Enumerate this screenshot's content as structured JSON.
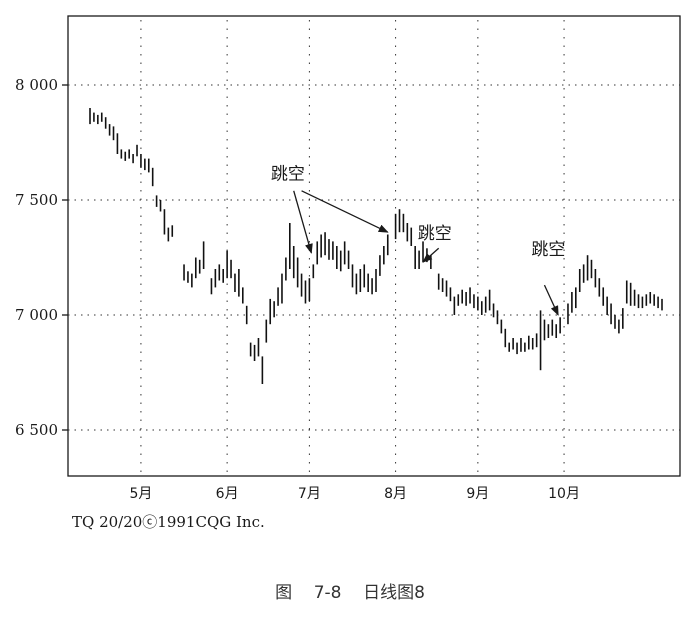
{
  "caption": "图    7-8    日线图8",
  "credit": "TQ 20/20ⓒ1991CQG Inc.",
  "chart_data": {
    "type": "bar",
    "subtype": "ohlc-daily",
    "ylim": [
      6300,
      8300
    ],
    "yticks": [
      {
        "value": 6500,
        "label": "6 500"
      },
      {
        "value": 7000,
        "label": "7 000"
      },
      {
        "value": 7500,
        "label": "7 500"
      },
      {
        "value": 8000,
        "label": "8 000"
      }
    ],
    "grid": "dotted-horizontal",
    "x_ticks": [
      {
        "label": "5月",
        "day": 13
      },
      {
        "label": "6月",
        "day": 35
      },
      {
        "label": "7月",
        "day": 56
      },
      {
        "label": "8月",
        "day": 78
      },
      {
        "label": "9月",
        "day": 99
      },
      {
        "label": "10月",
        "day": 121
      }
    ],
    "x_range": [
      -5,
      137
    ],
    "bars": [
      [
        0,
        7900,
        7830
      ],
      [
        1,
        7880,
        7840
      ],
      [
        2,
        7870,
        7830
      ],
      [
        3,
        7880,
        7840
      ],
      [
        4,
        7860,
        7810
      ],
      [
        5,
        7830,
        7780
      ],
      [
        6,
        7820,
        7760
      ],
      [
        7,
        7790,
        7700
      ],
      [
        8,
        7720,
        7680
      ],
      [
        9,
        7710,
        7670
      ],
      [
        10,
        7720,
        7680
      ],
      [
        11,
        7700,
        7660
      ],
      [
        12,
        7740,
        7690
      ],
      [
        13,
        7700,
        7640
      ],
      [
        14,
        7680,
        7630
      ],
      [
        15,
        7680,
        7620
      ],
      [
        16,
        7640,
        7560
      ],
      [
        17,
        7520,
        7470
      ],
      [
        18,
        7500,
        7450
      ],
      [
        19,
        7460,
        7350
      ],
      [
        20,
        7380,
        7320
      ],
      [
        21,
        7390,
        7340
      ],
      [
        24,
        7220,
        7150
      ],
      [
        25,
        7190,
        7140
      ],
      [
        26,
        7180,
        7120
      ],
      [
        27,
        7250,
        7160
      ],
      [
        28,
        7240,
        7180
      ],
      [
        29,
        7320,
        7200
      ],
      [
        31,
        7160,
        7090
      ],
      [
        32,
        7200,
        7120
      ],
      [
        33,
        7220,
        7150
      ],
      [
        34,
        7200,
        7140
      ],
      [
        35,
        7280,
        7160
      ],
      [
        36,
        7240,
        7160
      ],
      [
        37,
        7180,
        7100
      ],
      [
        38,
        7200,
        7080
      ],
      [
        39,
        7120,
        7050
      ],
      [
        40,
        7040,
        6960
      ],
      [
        41,
        6880,
        6820
      ],
      [
        42,
        6870,
        6800
      ],
      [
        43,
        6900,
        6820
      ],
      [
        44,
        6820,
        6700
      ],
      [
        45,
        6980,
        6880
      ],
      [
        46,
        7070,
        6960
      ],
      [
        47,
        7060,
        6990
      ],
      [
        48,
        7120,
        7040
      ],
      [
        49,
        7180,
        7050
      ],
      [
        50,
        7250,
        7150
      ],
      [
        51,
        7400,
        7200
      ],
      [
        52,
        7300,
        7160
      ],
      [
        53,
        7250,
        7120
      ],
      [
        54,
        7180,
        7080
      ],
      [
        55,
        7150,
        7050
      ],
      [
        56,
        7160,
        7060
      ],
      [
        57,
        7220,
        7160
      ],
      [
        58,
        7320,
        7220
      ],
      [
        59,
        7350,
        7250
      ],
      [
        60,
        7360,
        7260
      ],
      [
        61,
        7330,
        7240
      ],
      [
        62,
        7320,
        7240
      ],
      [
        63,
        7300,
        7200
      ],
      [
        64,
        7280,
        7190
      ],
      [
        65,
        7320,
        7220
      ],
      [
        66,
        7280,
        7200
      ],
      [
        67,
        7220,
        7120
      ],
      [
        68,
        7180,
        7090
      ],
      [
        69,
        7200,
        7100
      ],
      [
        70,
        7220,
        7120
      ],
      [
        71,
        7180,
        7100
      ],
      [
        72,
        7160,
        7090
      ],
      [
        73,
        7200,
        7100
      ],
      [
        74,
        7260,
        7170
      ],
      [
        75,
        7300,
        7220
      ],
      [
        76,
        7350,
        7260
      ],
      [
        78,
        7440,
        7330
      ],
      [
        79,
        7460,
        7360
      ],
      [
        80,
        7440,
        7360
      ],
      [
        81,
        7400,
        7320
      ],
      [
        82,
        7380,
        7300
      ],
      [
        83,
        7300,
        7200
      ],
      [
        84,
        7280,
        7200
      ],
      [
        85,
        7320,
        7230
      ],
      [
        86,
        7290,
        7230
      ],
      [
        87,
        7260,
        7200
      ],
      [
        89,
        7180,
        7110
      ],
      [
        90,
        7160,
        7100
      ],
      [
        91,
        7150,
        7080
      ],
      [
        92,
        7120,
        7060
      ],
      [
        93,
        7080,
        7000
      ],
      [
        94,
        7090,
        7040
      ],
      [
        95,
        7110,
        7050
      ],
      [
        96,
        7100,
        7040
      ],
      [
        97,
        7120,
        7050
      ],
      [
        98,
        7090,
        7030
      ],
      [
        99,
        7080,
        7020
      ],
      [
        100,
        7060,
        7000
      ],
      [
        101,
        7080,
        7010
      ],
      [
        102,
        7110,
        7020
      ],
      [
        103,
        7050,
        6990
      ],
      [
        104,
        7020,
        6960
      ],
      [
        105,
        6980,
        6920
      ],
      [
        106,
        6940,
        6860
      ],
      [
        107,
        6880,
        6840
      ],
      [
        108,
        6900,
        6850
      ],
      [
        109,
        6880,
        6830
      ],
      [
        110,
        6900,
        6840
      ],
      [
        111,
        6880,
        6840
      ],
      [
        112,
        6910,
        6850
      ],
      [
        113,
        6900,
        6850
      ],
      [
        114,
        6920,
        6860
      ],
      [
        115,
        7020,
        6760
      ],
      [
        116,
        6980,
        6890
      ],
      [
        117,
        6960,
        6900
      ],
      [
        118,
        6980,
        6910
      ],
      [
        119,
        6960,
        6900
      ],
      [
        120,
        6990,
        6920
      ],
      [
        122,
        7050,
        6960
      ],
      [
        123,
        7100,
        7010
      ],
      [
        124,
        7120,
        7030
      ],
      [
        125,
        7200,
        7100
      ],
      [
        126,
        7220,
        7140
      ],
      [
        127,
        7260,
        7150
      ],
      [
        128,
        7240,
        7160
      ],
      [
        129,
        7200,
        7120
      ],
      [
        130,
        7160,
        7080
      ],
      [
        131,
        7120,
        7040
      ],
      [
        132,
        7080,
        7000
      ],
      [
        133,
        7050,
        6960
      ],
      [
        134,
        7000,
        6940
      ],
      [
        135,
        6980,
        6920
      ],
      [
        136,
        7030,
        6940
      ]
    ],
    "bars_tail": [
      [
        137,
        7150,
        7050
      ],
      [
        138,
        7140,
        7040
      ],
      [
        139,
        7110,
        7040
      ],
      [
        140,
        7090,
        7030
      ],
      [
        141,
        7080,
        7030
      ],
      [
        142,
        7090,
        7040
      ],
      [
        143,
        7100,
        7050
      ],
      [
        144,
        7090,
        7040
      ],
      [
        145,
        7080,
        7030
      ],
      [
        146,
        7070,
        7020
      ]
    ],
    "annotations": [
      {
        "label": "跳空",
        "label_day": 50.5,
        "label_value": 7590,
        "arrow_from_day": 52,
        "arrow_from_value": 7540,
        "arrow_to_day": 56.5,
        "arrow_to_value": 7270
      },
      {
        "label_day": 53,
        "label_value": 7540,
        "arrow_from_day": 54,
        "arrow_from_value": 7540,
        "arrow_to_day": 76,
        "arrow_to_value": 7360
      },
      {
        "label": "跳空",
        "label_day": 88,
        "label_value": 7330,
        "arrow_from_day": 89,
        "arrow_from_value": 7290,
        "arrow_to_day": 85,
        "arrow_to_value": 7230
      },
      {
        "label": "跳空",
        "label_day": 117,
        "label_value": 7260,
        "arrow_from_day": 116,
        "arrow_from_value": 7130,
        "arrow_to_day": 119.5,
        "arrow_to_value": 7000
      }
    ]
  }
}
